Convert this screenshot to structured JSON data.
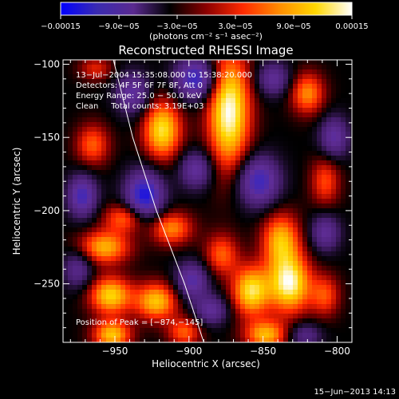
{
  "chart_data": {
    "type": "heatmap",
    "title": "Reconstructed RHESSI Image",
    "xlabel": "Heliocentric X (arcsec)",
    "ylabel": "Heliocentric Y (arcsec)",
    "xlim": [
      -985,
      -790
    ],
    "ylim": [
      -290,
      -97
    ],
    "x_ticks": [
      {
        "value": -950,
        "label": "−950"
      },
      {
        "value": -900,
        "label": "−900"
      },
      {
        "value": -850,
        "label": "−850"
      },
      {
        "value": -800,
        "label": "−800"
      }
    ],
    "y_ticks": [
      {
        "value": -100,
        "label": "−100"
      },
      {
        "value": -150,
        "label": "−150"
      },
      {
        "value": -200,
        "label": "−200"
      },
      {
        "value": -250,
        "label": "−250"
      }
    ],
    "colorbar": {
      "range": [
        -0.00015,
        0.00015
      ],
      "colors": [
        "#0000ff",
        "#3a2bb0",
        "#5a2a90",
        "#000000",
        "#8b0000",
        "#ff2a00",
        "#ff8c00",
        "#ffd700",
        "#ffffff"
      ],
      "ticks": [
        {
          "value": -0.00015,
          "label": "−0.00015"
        },
        {
          "value": -9e-05,
          "label": "−9.0e−05"
        },
        {
          "value": -3e-05,
          "label": "−3.0e−05"
        },
        {
          "value": 3e-05,
          "label": "3.0e−05"
        },
        {
          "value": 9e-05,
          "label": "9.0e−05"
        },
        {
          "value": 0.00015,
          "label": "0.00015"
        }
      ],
      "unit_label": "(photons cm⁻² s⁻¹ asec⁻²)"
    },
    "annotations": {
      "time_range": "13−Jul−2004 15:35:08.000 to 15:38:20.000",
      "detectors": "Detectors: 4F 5F 6F 7F 8F, Att 0",
      "energy_range": "Energy Range: 25.0 − 50.0 keV",
      "clean_counts": "Clean     Total counts: 3.19E+03",
      "peak_position": "Position of Peak = [−874,−145]"
    },
    "blobs": [
      {
        "x": -873,
        "y": -132,
        "amp": 1.0,
        "sx": 10,
        "sy": 28
      },
      {
        "x": -918,
        "y": -145,
        "amp": 0.85,
        "sx": 9,
        "sy": 14
      },
      {
        "x": -965,
        "y": -155,
        "amp": 0.5,
        "sx": 8,
        "sy": 10
      },
      {
        "x": -963,
        "y": -103,
        "amp": 0.35,
        "sx": 8,
        "sy": 6
      },
      {
        "x": -820,
        "y": -120,
        "amp": 0.6,
        "sx": 8,
        "sy": 10
      },
      {
        "x": -808,
        "y": -180,
        "amp": 0.45,
        "sx": 7,
        "sy": 12
      },
      {
        "x": -943,
        "y": -205,
        "amp": 0.55,
        "sx": 10,
        "sy": 7
      },
      {
        "x": -957,
        "y": -225,
        "amp": 0.7,
        "sx": 12,
        "sy": 8
      },
      {
        "x": -912,
        "y": -212,
        "amp": 0.6,
        "sx": 10,
        "sy": 8
      },
      {
        "x": -878,
        "y": -230,
        "amp": 0.5,
        "sx": 8,
        "sy": 10
      },
      {
        "x": -838,
        "y": -220,
        "amp": 0.7,
        "sx": 9,
        "sy": 13
      },
      {
        "x": -832,
        "y": -250,
        "amp": 0.95,
        "sx": 10,
        "sy": 14
      },
      {
        "x": -858,
        "y": -255,
        "amp": 0.85,
        "sx": 9,
        "sy": 12
      },
      {
        "x": -808,
        "y": -258,
        "amp": 0.45,
        "sx": 7,
        "sy": 10
      },
      {
        "x": -953,
        "y": -258,
        "amp": 0.8,
        "sx": 10,
        "sy": 9
      },
      {
        "x": -922,
        "y": -262,
        "amp": 0.75,
        "sx": 10,
        "sy": 9
      },
      {
        "x": -952,
        "y": -285,
        "amp": 0.75,
        "sx": 9,
        "sy": 7
      },
      {
        "x": -903,
        "y": -283,
        "amp": 0.5,
        "sx": 8,
        "sy": 7
      },
      {
        "x": -848,
        "y": -285,
        "amp": 0.7,
        "sx": 10,
        "sy": 7
      },
      {
        "x": -972,
        "y": -190,
        "amp": -0.7,
        "sx": 7,
        "sy": 10
      },
      {
        "x": -930,
        "y": -190,
        "amp": -0.9,
        "sx": 9,
        "sy": 12
      },
      {
        "x": -938,
        "y": -120,
        "amp": -0.55,
        "sx": 8,
        "sy": 10
      },
      {
        "x": -895,
        "y": -110,
        "amp": -0.8,
        "sx": 10,
        "sy": 10
      },
      {
        "x": -895,
        "y": -172,
        "amp": -0.55,
        "sx": 8,
        "sy": 9
      },
      {
        "x": -853,
        "y": -180,
        "amp": -0.75,
        "sx": 10,
        "sy": 12
      },
      {
        "x": -843,
        "y": -110,
        "amp": -0.5,
        "sx": 8,
        "sy": 8
      },
      {
        "x": -802,
        "y": -150,
        "amp": -0.55,
        "sx": 7,
        "sy": 10
      },
      {
        "x": -808,
        "y": -215,
        "amp": -0.5,
        "sx": 7,
        "sy": 9
      },
      {
        "x": -898,
        "y": -248,
        "amp": -0.6,
        "sx": 8,
        "sy": 9
      },
      {
        "x": -975,
        "y": -240,
        "amp": -0.45,
        "sx": 7,
        "sy": 9
      },
      {
        "x": -885,
        "y": -268,
        "amp": -0.5,
        "sx": 8,
        "sy": 7
      },
      {
        "x": -822,
        "y": -285,
        "amp": -0.4,
        "sx": 8,
        "sy": 6
      }
    ],
    "limb_curve": [
      [
        -951,
        -97
      ],
      [
        -938,
        -150
      ],
      [
        -922,
        -200
      ],
      [
        -903,
        -250
      ],
      [
        -890,
        -290
      ]
    ]
  },
  "footer": {
    "timestamp": "15−Jun−2013 14:13"
  }
}
